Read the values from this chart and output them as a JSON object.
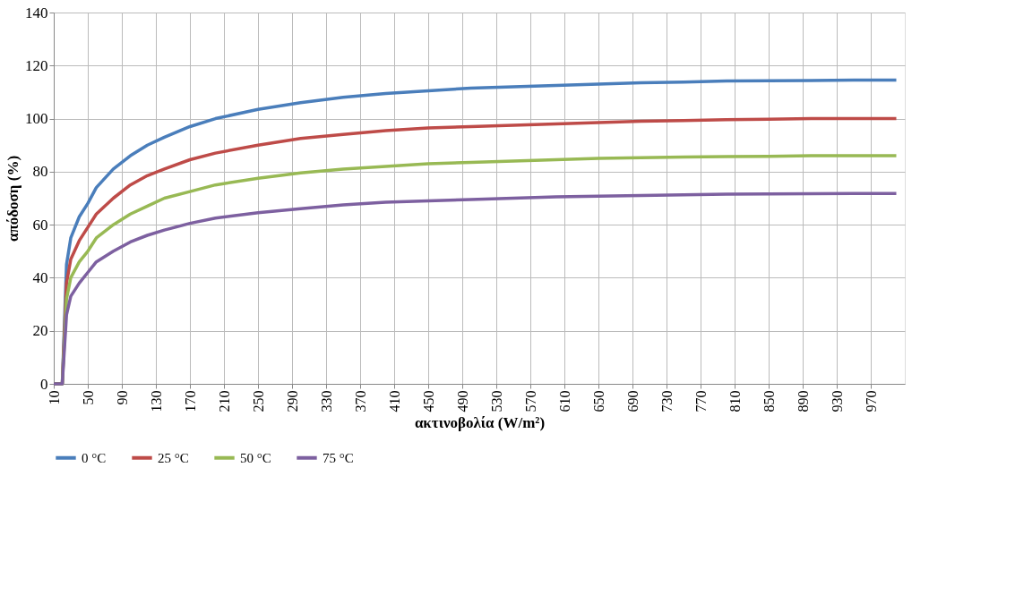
{
  "chart_data": {
    "type": "line",
    "xlabel": "ακτινοβολία (W/m²)",
    "ylabel": "απόδοση (%)",
    "x": [
      10,
      20,
      25,
      30,
      40,
      50,
      60,
      80,
      100,
      120,
      140,
      170,
      200,
      250,
      300,
      350,
      400,
      450,
      500,
      550,
      600,
      650,
      700,
      750,
      800,
      850,
      900,
      950,
      1000
    ],
    "series": [
      {
        "name": "0 °C",
        "color": "#4a7ebb",
        "values": [
          0,
          0,
          45,
          55,
          63,
          68,
          74,
          81,
          86,
          90,
          93,
          97,
          100,
          103.5,
          106,
          108,
          109.5,
          110.5,
          111.5,
          112,
          112.5,
          113,
          113.5,
          113.8,
          114.2,
          114.3,
          114.4,
          114.5,
          114.5
        ]
      },
      {
        "name": "25 °C",
        "color": "#be4b48",
        "values": [
          0,
          0,
          38,
          47,
          54,
          59,
          64,
          70,
          75,
          78.5,
          81,
          84.5,
          87,
          90,
          92.5,
          94,
          95.5,
          96.5,
          97,
          97.5,
          98,
          98.5,
          99,
          99.3,
          99.6,
          99.8,
          100,
          100,
          100
        ]
      },
      {
        "name": "50 °C",
        "color": "#98b954",
        "values": [
          0,
          0,
          32,
          40,
          46,
          50,
          55,
          60,
          64,
          67,
          70,
          72.5,
          75,
          77.5,
          79.5,
          81,
          82,
          83,
          83.5,
          84,
          84.5,
          85,
          85.3,
          85.5,
          85.7,
          85.8,
          86,
          86,
          86
        ]
      },
      {
        "name": "75 °C",
        "color": "#7d60a0",
        "values": [
          0,
          0,
          26,
          33,
          38,
          42,
          46,
          50,
          53.5,
          56,
          58,
          60.5,
          62.5,
          64.5,
          66,
          67.5,
          68.5,
          69,
          69.5,
          70,
          70.5,
          70.8,
          71,
          71.3,
          71.5,
          71.6,
          71.7,
          71.8,
          71.8
        ]
      }
    ],
    "xlim": [
      10,
      1010
    ],
    "xticks": [
      10,
      50,
      90,
      130,
      170,
      210,
      250,
      290,
      330,
      370,
      410,
      450,
      490,
      530,
      570,
      610,
      650,
      690,
      730,
      770,
      810,
      850,
      890,
      930,
      970
    ],
    "ylim": [
      0,
      140
    ],
    "yticks": [
      0,
      20,
      40,
      60,
      80,
      100,
      120,
      140
    ],
    "grid": true,
    "legend": "bottom",
    "marker": "none",
    "line_style": "solid"
  }
}
